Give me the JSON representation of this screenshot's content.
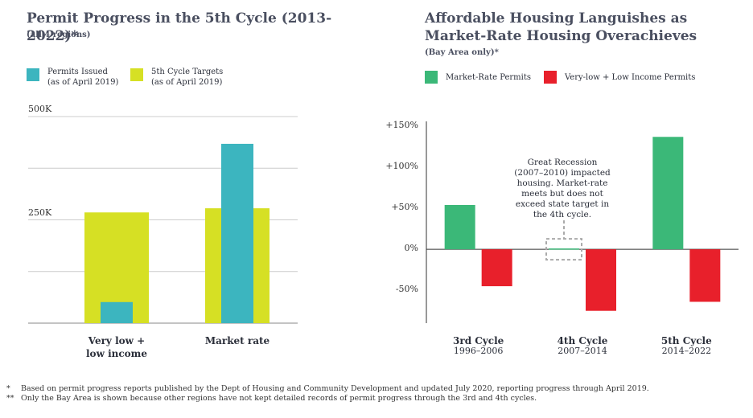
{
  "chart_data": [
    {
      "type": "bar",
      "title": "Permit Progress in the 5th Cycle (2013-2022)*",
      "subtitle": "(all 4 regions)",
      "categories": [
        "Very low + low income",
        "Market rate"
      ],
      "series": [
        {
          "name": "Permits Issued",
          "note": "(as of April 2019)",
          "color": "#3cb5bf",
          "values": [
            51000,
            434000
          ]
        },
        {
          "name": "5th Cycle Targets",
          "note": "(as of April 2019)",
          "color": "#d6e024",
          "values": [
            268000,
            278000
          ]
        }
      ],
      "ylim": [
        0,
        500000
      ],
      "yticks": [
        {
          "value": 250000,
          "label": "250K"
        },
        {
          "value": 500000,
          "label": "500K"
        }
      ],
      "minor_gridlines": [
        125000,
        375000
      ],
      "grid": true
    },
    {
      "type": "bar",
      "title": "Affordable Housing Languishes as Market-Rate Housing Overachieves",
      "subtitle": "(Bay Area only)*",
      "categories": [
        "3rd Cycle",
        "4th Cycle",
        "5th Cycle"
      ],
      "periods": [
        "1996–2006",
        "2007–2014",
        "2014–2022"
      ],
      "series": [
        {
          "name": "Market-Rate Permits",
          "color": "#3bb878",
          "values": [
            54,
            1,
            137
          ]
        },
        {
          "name": "Very-low + Low Income Permits",
          "color": "#e8202b",
          "values": [
            -45,
            -75,
            -64
          ]
        }
      ],
      "ylim": [
        -90,
        150
      ],
      "yticks": [
        {
          "value": -50,
          "label": "-50%"
        },
        {
          "value": 0,
          "label": "0%"
        },
        {
          "value": 50,
          "label": "+50%"
        },
        {
          "value": 100,
          "label": "+100%"
        },
        {
          "value": 150,
          "label": "+150%"
        }
      ],
      "annotation": "Great Recession (2007–2010) impacted housing. Market-rate meets but does not exceed state target in the 4th cycle."
    }
  ],
  "footnotes": [
    {
      "mark": "*",
      "text": "Based on permit progress reports published by the Dept of Housing and Community Development and updated July 2020, reporting progress through April 2019."
    },
    {
      "mark": "**",
      "text": "Only the Bay Area is shown because other regions have not kept detailed records of permit progress through the 3rd and 4th cycles."
    }
  ]
}
